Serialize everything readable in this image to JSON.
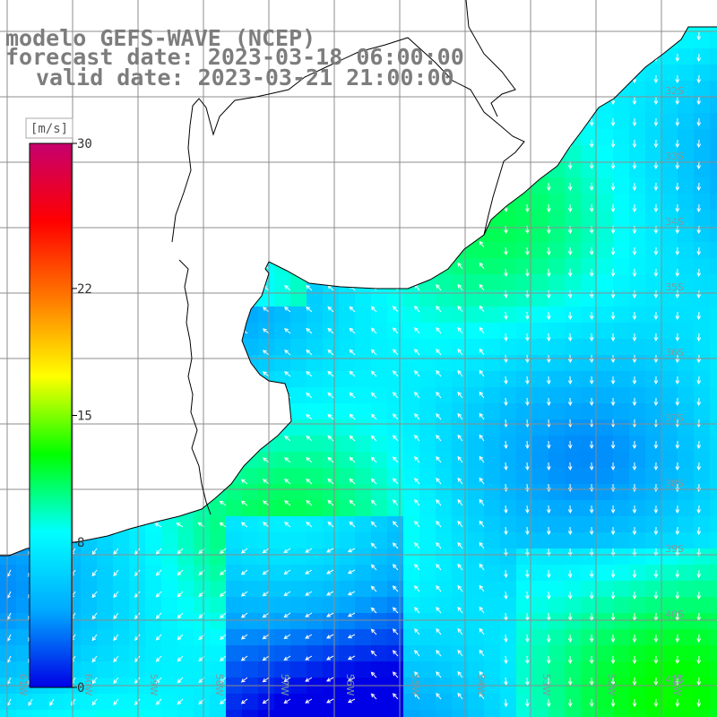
{
  "map": {
    "title": {
      "model": "modelo GEFS-WAVE (NCEP)",
      "forecast": "forecast date: 2023-03-18 06:00:00",
      "valid": "valid date: 2023-03-21 21:00:00"
    },
    "colorbar": {
      "unit": "[m/s]",
      "ticks": [
        {
          "value": 30,
          "label": "30"
        },
        {
          "value": 22,
          "label": "22"
        },
        {
          "value": 15,
          "label": "15"
        },
        {
          "value": 8,
          "label": "8"
        },
        {
          "value": 0,
          "label": "0"
        }
      ],
      "range": [
        0,
        30
      ],
      "colors": [
        "#0000e6",
        "#00aaff",
        "#00ffff",
        "#00ff00",
        "#ffff00",
        "#ff7a00",
        "#ff0000",
        "#c6006e"
      ]
    },
    "latitude_labels": [
      "32S",
      "33S",
      "34S",
      "35S",
      "36S",
      "37S",
      "38S",
      "39S",
      "40S",
      "41S"
    ],
    "longitude_labels": [
      "61W",
      "60W",
      "59W",
      "58W",
      "57W",
      "56W",
      "55W",
      "54W",
      "53W",
      "52W",
      "51W"
    ],
    "land_color": "#ffffff",
    "grid_color": "#8c8c8c",
    "arrow_color": "#ffffff"
  }
}
